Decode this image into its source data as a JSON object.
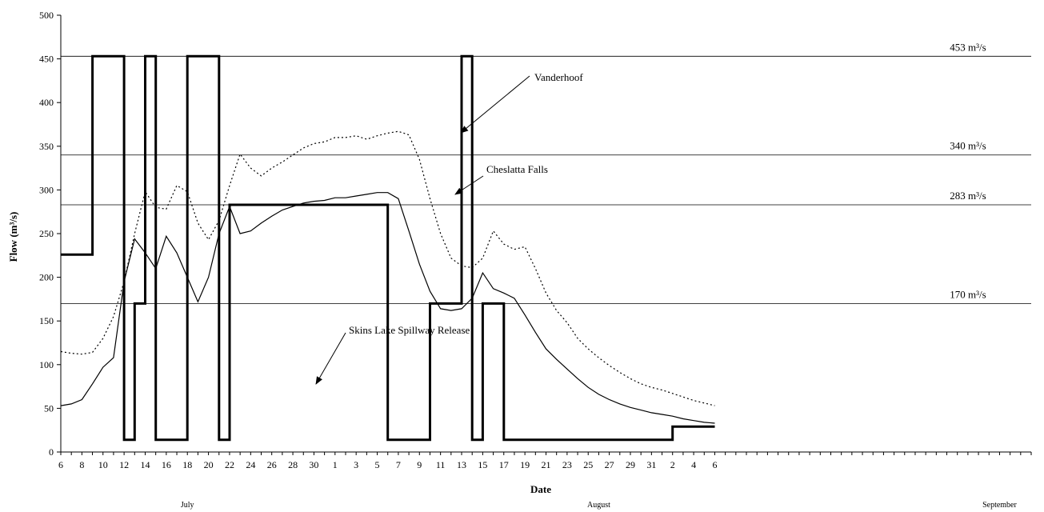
{
  "chart_data": {
    "type": "line",
    "title": "",
    "xlabel": "Date",
    "ylabel": "Flow (m³/s)",
    "ylim": [
      0,
      500
    ],
    "yticks": [
      0,
      50,
      100,
      150,
      200,
      250,
      300,
      350,
      400,
      450,
      500
    ],
    "x_domain_days": [
      0,
      92
    ],
    "x_tick_labels": [
      "6",
      "8",
      "10",
      "12",
      "14",
      "16",
      "18",
      "20",
      "22",
      "24",
      "26",
      "28",
      "30",
      "1",
      "3",
      "5",
      "7",
      "9",
      "11",
      "13",
      "15",
      "17",
      "19",
      "21",
      "23",
      "25",
      "27",
      "29",
      "31",
      "2",
      "4",
      "6"
    ],
    "month_labels": [
      {
        "text": "July",
        "day": 12
      },
      {
        "text": "August",
        "day": 51
      },
      {
        "text": "September",
        "day": 89
      }
    ],
    "grid": false,
    "reference_lines": [
      {
        "value": 453,
        "label": "453 m³/s"
      },
      {
        "value": 340,
        "label": "340 m³/s"
      },
      {
        "value": 283,
        "label": "283 m³/s"
      },
      {
        "value": 170,
        "label": "170 m³/s"
      }
    ],
    "series": [
      {
        "name": "Skins Lake Spillway Release",
        "style": "step-thick",
        "points": [
          [
            0,
            226
          ],
          [
            3,
            226
          ],
          [
            3,
            453
          ],
          [
            6,
            453
          ],
          [
            6,
            14
          ],
          [
            7,
            14
          ],
          [
            7,
            170
          ],
          [
            8,
            170
          ],
          [
            8,
            453
          ],
          [
            9,
            453
          ],
          [
            9,
            14
          ],
          [
            12,
            14
          ],
          [
            12,
            453
          ],
          [
            15,
            453
          ],
          [
            15,
            14
          ],
          [
            16,
            14
          ],
          [
            16,
            283
          ],
          [
            31,
            283
          ],
          [
            31,
            14
          ],
          [
            35,
            14
          ],
          [
            35,
            170
          ],
          [
            38,
            170
          ],
          [
            38,
            453
          ],
          [
            39,
            453
          ],
          [
            39,
            14
          ],
          [
            40,
            14
          ],
          [
            40,
            170
          ],
          [
            42,
            170
          ],
          [
            42,
            14
          ],
          [
            58,
            14
          ],
          [
            58,
            29
          ],
          [
            62,
            29
          ]
        ]
      },
      {
        "name": "Cheslatta Falls",
        "style": "solid",
        "points": [
          [
            0,
            53
          ],
          [
            1,
            55
          ],
          [
            2,
            60
          ],
          [
            3,
            78
          ],
          [
            4,
            97
          ],
          [
            5,
            108
          ],
          [
            6,
            195
          ],
          [
            7,
            244
          ],
          [
            8,
            228
          ],
          [
            9,
            210
          ],
          [
            10,
            247
          ],
          [
            11,
            228
          ],
          [
            12,
            200
          ],
          [
            13,
            172
          ],
          [
            14,
            200
          ],
          [
            15,
            250
          ],
          [
            16,
            281
          ],
          [
            17,
            250
          ],
          [
            18,
            253
          ],
          [
            19,
            262
          ],
          [
            20,
            270
          ],
          [
            21,
            277
          ],
          [
            22,
            281
          ],
          [
            23,
            285
          ],
          [
            24,
            287
          ],
          [
            25,
            288
          ],
          [
            26,
            291
          ],
          [
            27,
            291
          ],
          [
            28,
            293
          ],
          [
            29,
            295
          ],
          [
            30,
            297
          ],
          [
            31,
            297
          ],
          [
            32,
            290
          ],
          [
            33,
            253
          ],
          [
            34,
            215
          ],
          [
            35,
            184
          ],
          [
            36,
            164
          ],
          [
            37,
            162
          ],
          [
            38,
            164
          ],
          [
            39,
            176
          ],
          [
            40,
            205
          ],
          [
            41,
            187
          ],
          [
            42,
            182
          ],
          [
            43,
            176
          ],
          [
            44,
            157
          ],
          [
            45,
            137
          ],
          [
            46,
            118
          ],
          [
            47,
            106
          ],
          [
            48,
            95
          ],
          [
            49,
            84
          ],
          [
            50,
            74
          ],
          [
            51,
            66
          ],
          [
            52,
            60
          ],
          [
            53,
            55
          ],
          [
            54,
            51
          ],
          [
            55,
            48
          ],
          [
            56,
            45
          ],
          [
            57,
            43
          ],
          [
            58,
            41
          ],
          [
            59,
            38
          ],
          [
            60,
            36
          ],
          [
            61,
            34
          ],
          [
            62,
            33
          ]
        ]
      },
      {
        "name": "Vanderhoof",
        "style": "dotted",
        "points": [
          [
            0,
            115
          ],
          [
            1,
            113
          ],
          [
            2,
            112
          ],
          [
            3,
            114
          ],
          [
            4,
            130
          ],
          [
            5,
            155
          ],
          [
            6,
            195
          ],
          [
            7,
            250
          ],
          [
            8,
            298
          ],
          [
            9,
            280
          ],
          [
            10,
            278
          ],
          [
            11,
            305
          ],
          [
            12,
            298
          ],
          [
            13,
            262
          ],
          [
            14,
            243
          ],
          [
            15,
            265
          ],
          [
            16,
            305
          ],
          [
            17,
            341
          ],
          [
            18,
            325
          ],
          [
            19,
            316
          ],
          [
            20,
            325
          ],
          [
            21,
            332
          ],
          [
            22,
            340
          ],
          [
            23,
            348
          ],
          [
            24,
            353
          ],
          [
            25,
            355
          ],
          [
            26,
            360
          ],
          [
            27,
            360
          ],
          [
            28,
            362
          ],
          [
            29,
            358
          ],
          [
            30,
            362
          ],
          [
            31,
            365
          ],
          [
            32,
            367
          ],
          [
            33,
            363
          ],
          [
            34,
            335
          ],
          [
            35,
            290
          ],
          [
            36,
            250
          ],
          [
            37,
            222
          ],
          [
            38,
            213
          ],
          [
            39,
            211
          ],
          [
            40,
            222
          ],
          [
            41,
            253
          ],
          [
            42,
            238
          ],
          [
            43,
            232
          ],
          [
            44,
            235
          ],
          [
            45,
            210
          ],
          [
            46,
            182
          ],
          [
            47,
            162
          ],
          [
            48,
            148
          ],
          [
            49,
            130
          ],
          [
            50,
            118
          ],
          [
            51,
            108
          ],
          [
            52,
            99
          ],
          [
            53,
            91
          ],
          [
            54,
            84
          ],
          [
            55,
            78
          ],
          [
            56,
            74
          ],
          [
            57,
            71
          ],
          [
            58,
            67
          ],
          [
            59,
            63
          ],
          [
            60,
            59
          ],
          [
            61,
            56
          ],
          [
            62,
            53
          ]
        ]
      }
    ],
    "annotations": [
      {
        "text": "Vanderhoof",
        "series": "Vanderhoof"
      },
      {
        "text": "Cheslatta Falls",
        "series": "Cheslatta Falls"
      },
      {
        "text": "Skins Lake Spillway Release",
        "series": "Skins Lake Spillway Release"
      }
    ]
  }
}
